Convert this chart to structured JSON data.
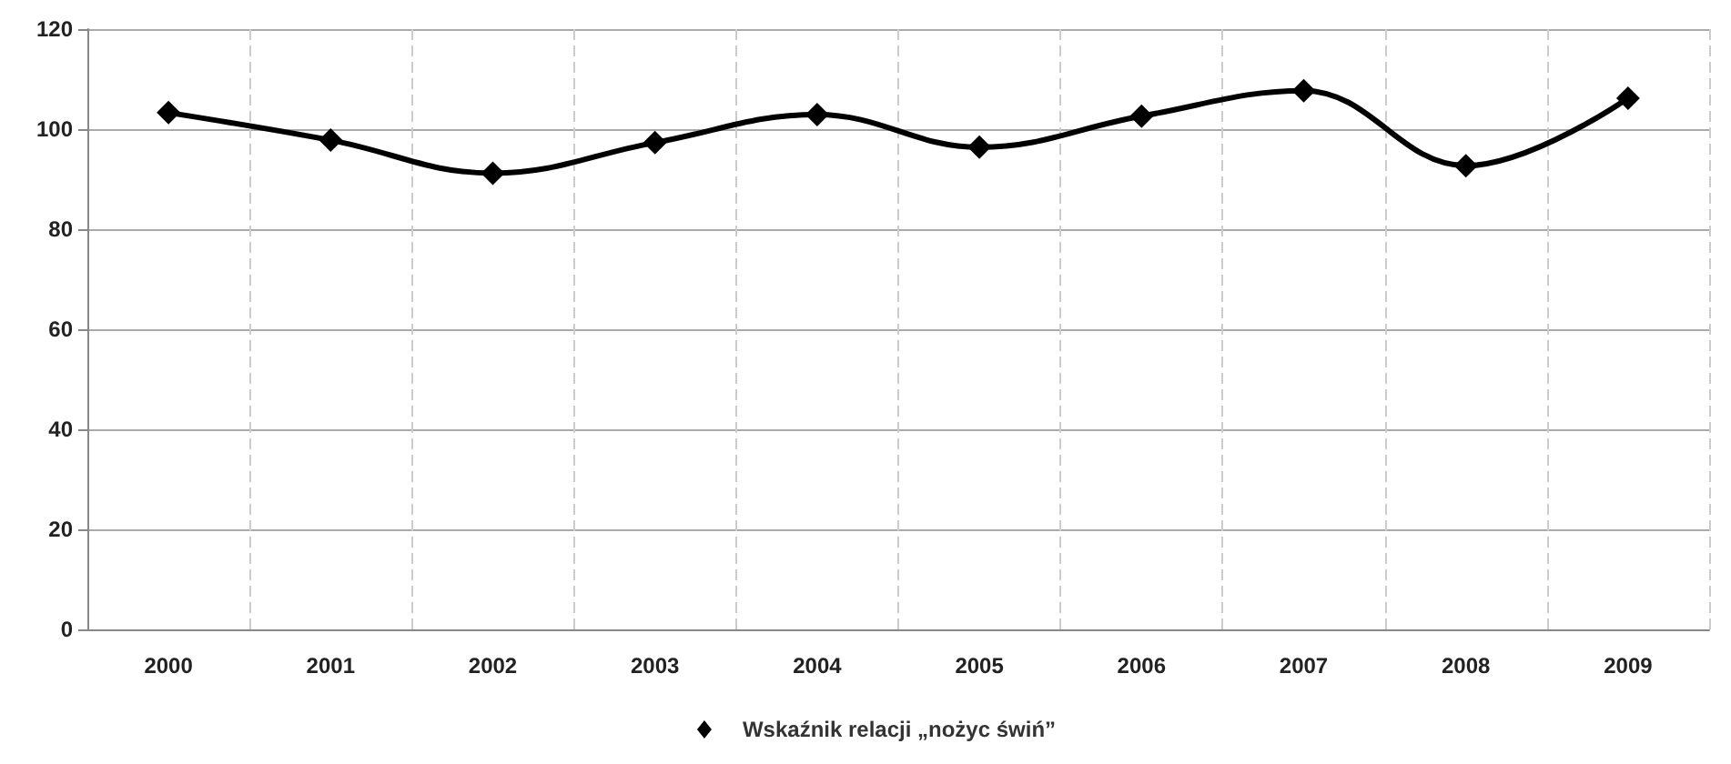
{
  "chart_data": {
    "type": "line",
    "categories": [
      "2000",
      "2001",
      "2002",
      "2003",
      "2004",
      "2005",
      "2006",
      "2007",
      "2008",
      "2009"
    ],
    "series": [
      {
        "name": "Wskaźnik relacji „nożyc świń”",
        "color": "#000000",
        "values": [
          103.3,
          97.8,
          91.2,
          97.3,
          102.9,
          96.4,
          102.6,
          107.7,
          92.7,
          106.2
        ]
      }
    ],
    "ylim": [
      0,
      120
    ],
    "yticks": [
      0,
      20,
      40,
      60,
      80,
      100,
      120
    ],
    "grid": true,
    "legend": "bottom",
    "marker": "diamond",
    "line_style": "solid"
  }
}
